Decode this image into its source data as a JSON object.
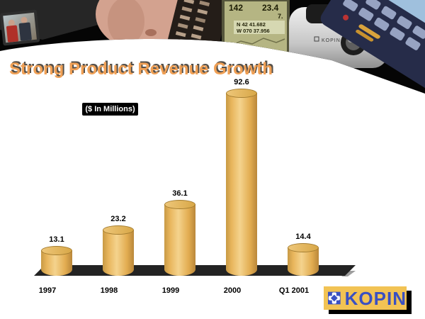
{
  "header": {
    "title": "Strong Product Revenue Growth",
    "units_label": "($ In Millions)"
  },
  "banner": {
    "gps": {
      "heading": "142",
      "reading": "23.4",
      "small_reading": "7.",
      "lat": "N 42 41.682",
      "lon": "W 070 37.956"
    },
    "camera_label": "KOPIN"
  },
  "chart_data": {
    "type": "bar",
    "title": "Strong Product Revenue Growth",
    "units": "$ In Millions",
    "categories": [
      "1997",
      "1998",
      "1999",
      "2000",
      "Q1 2001"
    ],
    "values": [
      13.1,
      23.2,
      36.1,
      92.6,
      14.4
    ],
    "bar_style": "3d-cylinder",
    "bar_color": "#E5B254",
    "floor_color": "#232323",
    "ylim": [
      0,
      100
    ],
    "grid": false,
    "value_labels": true,
    "legend": "none"
  },
  "logo": {
    "text": "KOPIN",
    "bg_color": "#F2C354",
    "text_color": "#3A50C2"
  }
}
